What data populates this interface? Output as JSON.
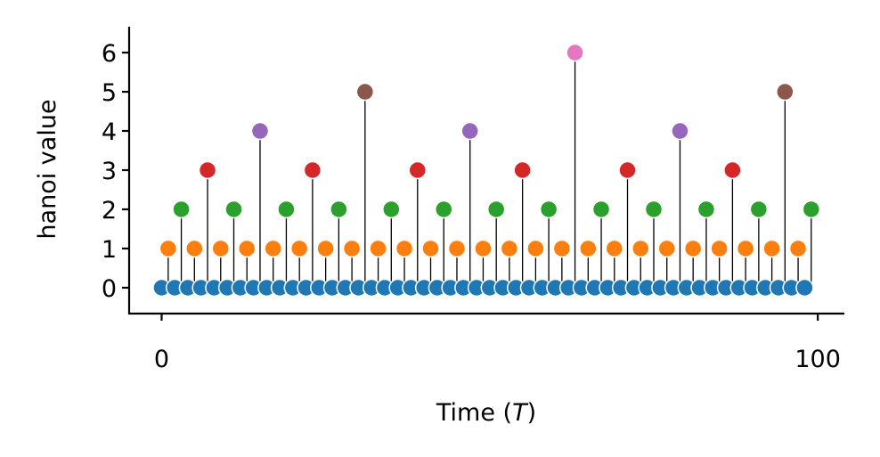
{
  "chart_data": {
    "type": "stem",
    "ylabel": "hanoi value",
    "xlabel": [
      "Time (",
      "T",
      ")"
    ],
    "x": [
      0,
      1,
      2,
      3,
      4,
      5,
      6,
      7,
      8,
      9,
      10,
      11,
      12,
      13,
      14,
      15,
      16,
      17,
      18,
      19,
      20,
      21,
      22,
      23,
      24,
      25,
      26,
      27,
      28,
      29,
      30,
      31,
      32,
      33,
      34,
      35,
      36,
      37,
      38,
      39,
      40,
      41,
      42,
      43,
      44,
      45,
      46,
      47,
      48,
      49,
      50,
      51,
      52,
      53,
      54,
      55,
      56,
      57,
      58,
      59,
      60,
      61,
      62,
      63,
      64,
      65,
      66,
      67,
      68,
      69,
      70,
      71,
      72,
      73,
      74,
      75,
      76,
      77,
      78,
      79,
      80,
      81,
      82,
      83,
      84,
      85,
      86,
      87,
      88,
      89,
      90,
      91,
      92,
      93,
      94,
      95,
      96,
      97,
      98,
      99
    ],
    "values": [
      0,
      1,
      0,
      2,
      0,
      1,
      0,
      3,
      0,
      1,
      0,
      2,
      0,
      1,
      0,
      4,
      0,
      1,
      0,
      2,
      0,
      1,
      0,
      3,
      0,
      1,
      0,
      2,
      0,
      1,
      0,
      5,
      0,
      1,
      0,
      2,
      0,
      1,
      0,
      3,
      0,
      1,
      0,
      2,
      0,
      1,
      0,
      4,
      0,
      1,
      0,
      2,
      0,
      1,
      0,
      3,
      0,
      1,
      0,
      2,
      0,
      1,
      0,
      6,
      0,
      1,
      0,
      2,
      0,
      1,
      0,
      3,
      0,
      1,
      0,
      2,
      0,
      1,
      0,
      4,
      0,
      1,
      0,
      2,
      0,
      1,
      0,
      3,
      0,
      1,
      0,
      2,
      0,
      1,
      0,
      5,
      0,
      1,
      0,
      2
    ],
    "colors": [
      "#1f77b4",
      "#ff7f0e",
      "#2ca02c",
      "#d62728",
      "#9467bd",
      "#8c564b",
      "#e377c2"
    ],
    "stem_color": "#000000",
    "xlim": [
      -4.95,
      104.05
    ],
    "xticks": [
      0,
      100
    ],
    "ylim": [
      -0.66,
      6.66
    ],
    "yticks": [
      0,
      1,
      2,
      3,
      4,
      5,
      6
    ]
  }
}
